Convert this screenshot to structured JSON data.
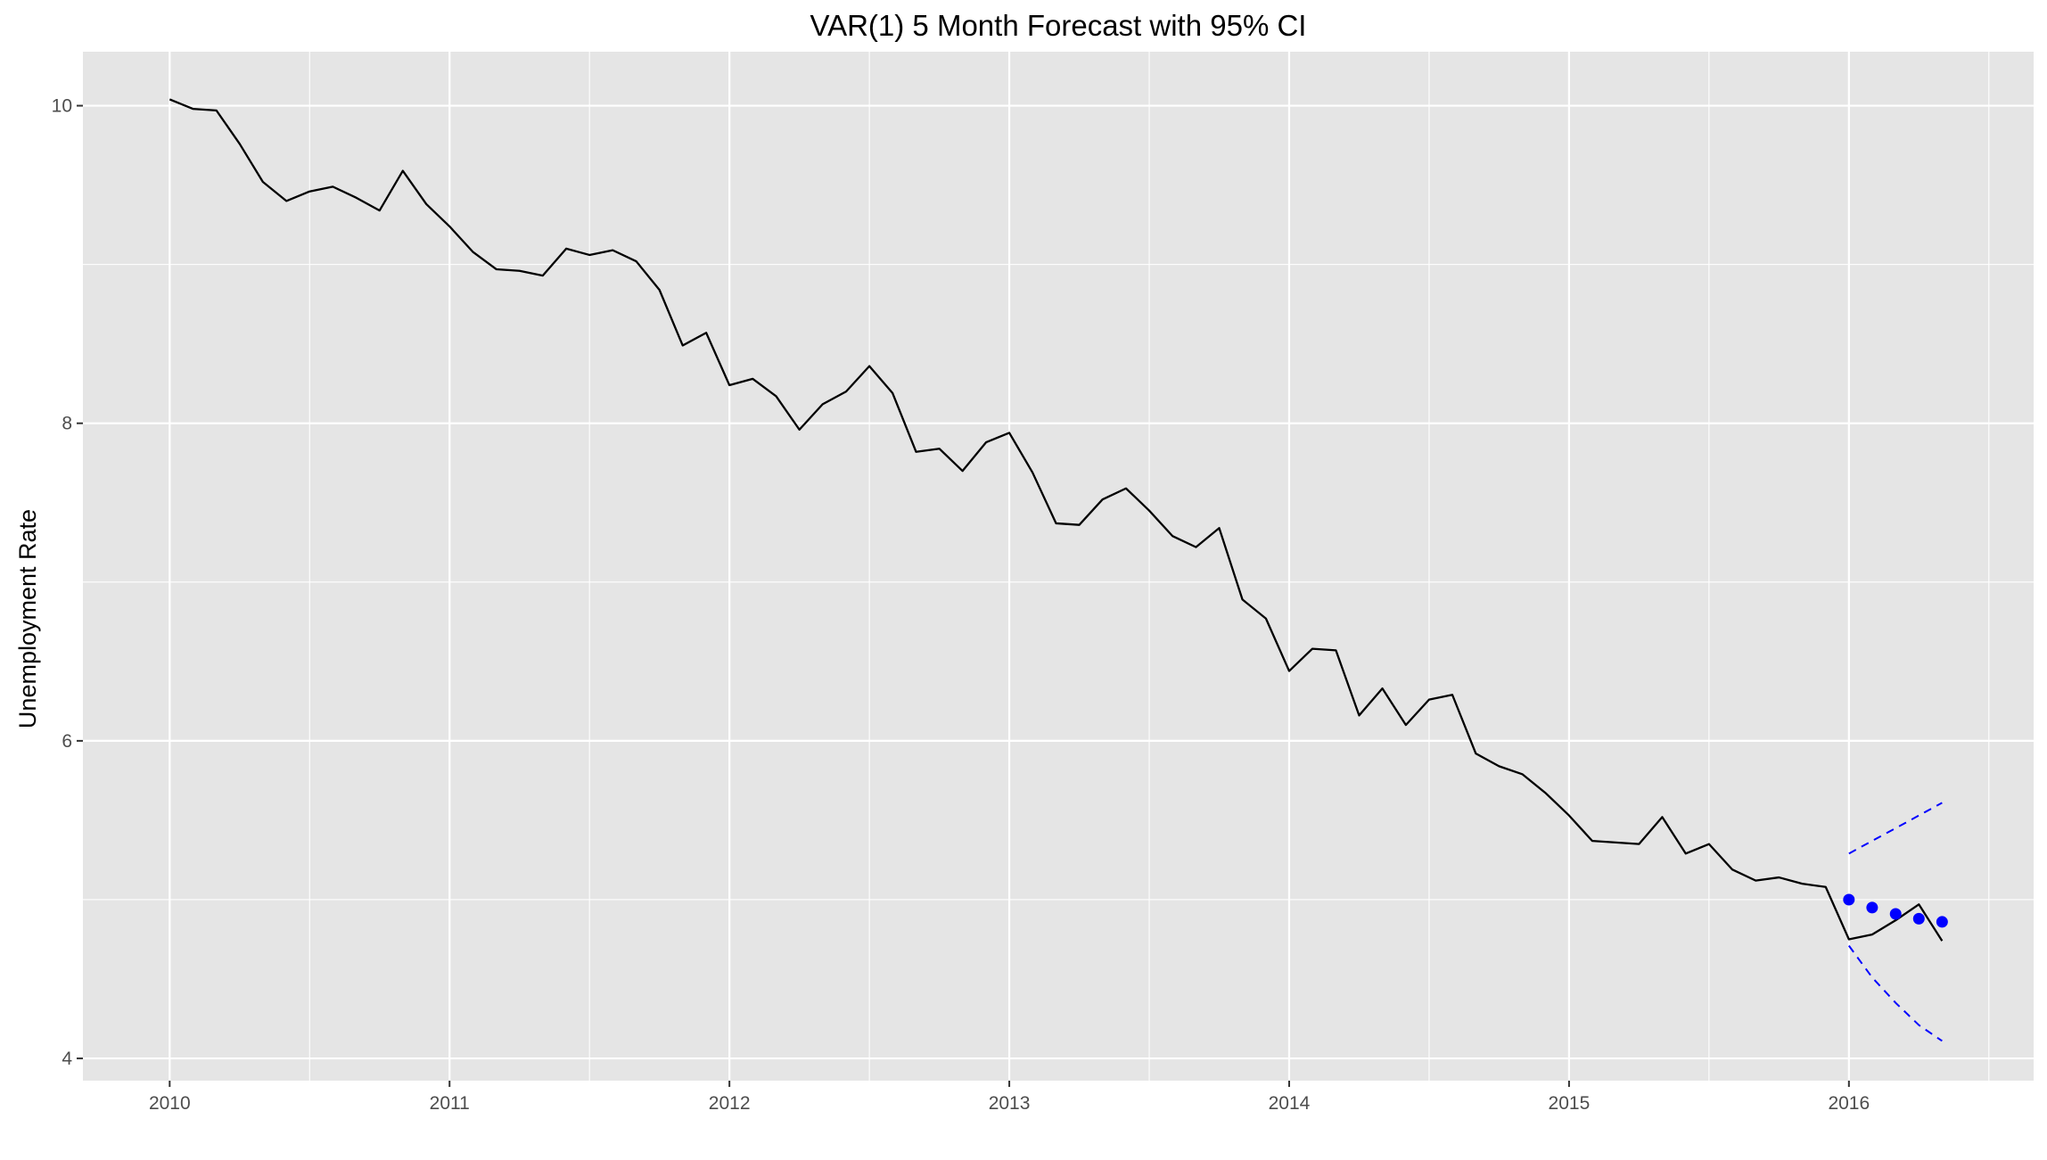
{
  "chart_data": {
    "type": "line",
    "title": "VAR(1) 5 Month Forecast with 95% CI",
    "xlabel": "",
    "ylabel": "Unemployment Rate",
    "xlim": [
      2009.69,
      2016.66
    ],
    "ylim": [
      3.86,
      10.34
    ],
    "x_ticks": [
      2010,
      2011,
      2012,
      2013,
      2014,
      2015,
      2016
    ],
    "x_tick_labels": [
      "2010",
      "2011",
      "2012",
      "2013",
      "2014",
      "2015",
      "2016"
    ],
    "y_ticks": [
      4,
      6,
      8,
      10
    ],
    "y_tick_labels": [
      "4",
      "6",
      "8",
      "10"
    ],
    "grid": true,
    "legend": "none",
    "colors": {
      "panel_background": "#e5e5e5",
      "grid": "#ffffff",
      "actual_line": "#000000",
      "forecast": "#0000ff",
      "text": "#000000",
      "tick_text": "#4d4d4d",
      "tick_mark": "#333333"
    },
    "series": [
      {
        "role": "actual",
        "style": "solid",
        "x": [
          2010.0,
          2010.083,
          2010.167,
          2010.25,
          2010.333,
          2010.417,
          2010.5,
          2010.583,
          2010.667,
          2010.75,
          2010.833,
          2010.917,
          2011.0,
          2011.083,
          2011.167,
          2011.25,
          2011.333,
          2011.417,
          2011.5,
          2011.583,
          2011.667,
          2011.75,
          2011.833,
          2011.917,
          2012.0,
          2012.083,
          2012.167,
          2012.25,
          2012.333,
          2012.417,
          2012.5,
          2012.583,
          2012.667,
          2012.75,
          2012.833,
          2012.917,
          2013.0,
          2013.083,
          2013.167,
          2013.25,
          2013.333,
          2013.417,
          2013.5,
          2013.583,
          2013.667,
          2013.75,
          2013.833,
          2013.917,
          2014.0,
          2014.083,
          2014.167,
          2014.25,
          2014.333,
          2014.417,
          2014.5,
          2014.583,
          2014.667,
          2014.75,
          2014.833,
          2014.917,
          2015.0,
          2015.083,
          2015.167,
          2015.25,
          2015.333,
          2015.417,
          2015.5,
          2015.583,
          2015.667,
          2015.75,
          2015.833,
          2015.917,
          2016.0,
          2016.083,
          2016.167,
          2016.25,
          2016.333
        ],
        "y": [
          10.04,
          9.98,
          9.97,
          9.76,
          9.52,
          9.4,
          9.46,
          9.49,
          9.42,
          9.34,
          9.59,
          9.38,
          9.24,
          9.08,
          8.97,
          8.96,
          8.93,
          9.1,
          9.06,
          9.09,
          9.02,
          8.84,
          8.49,
          8.57,
          8.24,
          8.28,
          8.17,
          7.96,
          8.12,
          8.2,
          8.36,
          8.19,
          7.82,
          7.84,
          7.7,
          7.88,
          7.94,
          7.69,
          7.37,
          7.36,
          7.52,
          7.59,
          7.45,
          7.29,
          7.22,
          7.34,
          6.89,
          6.77,
          6.44,
          6.58,
          6.57,
          6.16,
          6.33,
          6.1,
          6.26,
          6.29,
          5.92,
          5.84,
          5.79,
          5.67,
          5.53,
          5.37,
          5.36,
          5.35,
          5.52,
          5.29,
          5.35,
          5.19,
          5.12,
          5.14,
          5.1,
          5.08,
          4.75,
          4.78,
          4.87,
          4.97,
          4.74
        ]
      },
      {
        "role": "forecast",
        "style": "points",
        "x": [
          2016.0,
          2016.083,
          2016.167,
          2016.25,
          2016.333
        ],
        "y": [
          5.0,
          4.95,
          4.91,
          4.88,
          4.86
        ]
      },
      {
        "role": "upper_95_ci",
        "style": "dashed",
        "x": [
          2016.0,
          2016.083,
          2016.167,
          2016.25,
          2016.333
        ],
        "y": [
          5.29,
          5.37,
          5.45,
          5.53,
          5.61
        ]
      },
      {
        "role": "lower_95_ci",
        "style": "dashed",
        "x": [
          2016.0,
          2016.083,
          2016.167,
          2016.25,
          2016.333
        ],
        "y": [
          4.71,
          4.51,
          4.35,
          4.21,
          4.11
        ]
      }
    ]
  }
}
